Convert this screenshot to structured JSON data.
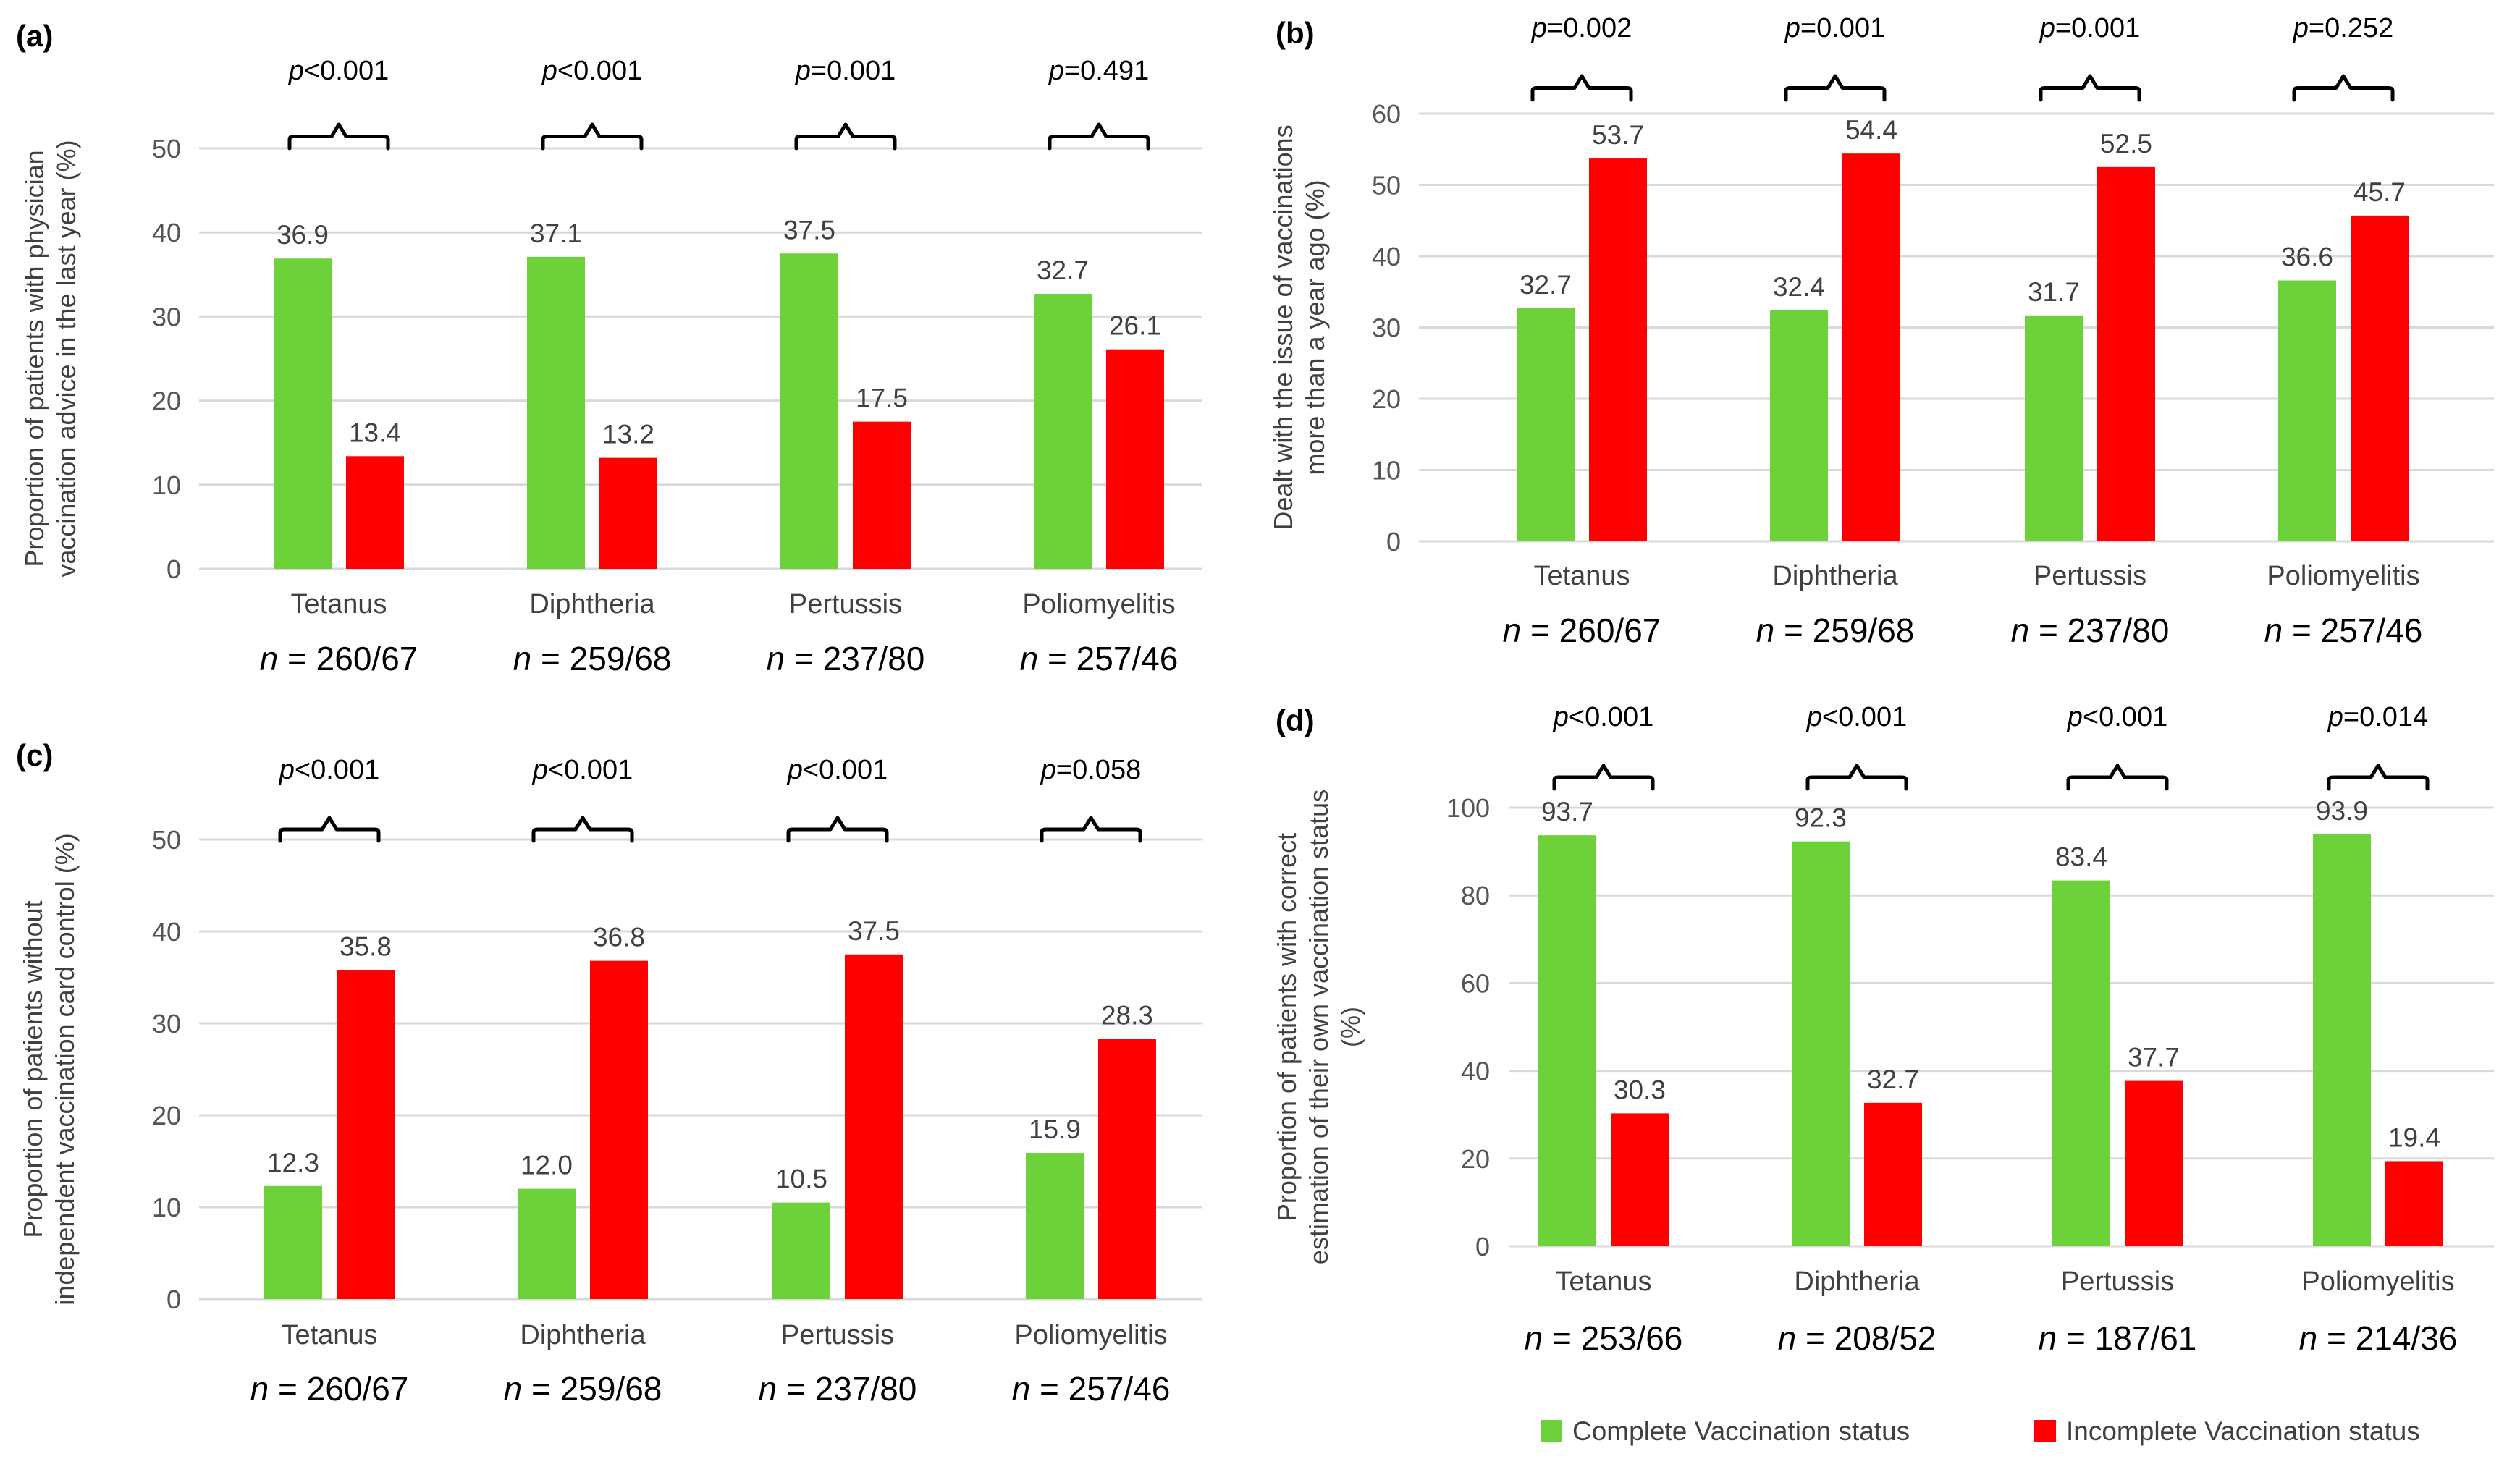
{
  "chart_data": [
    {
      "type": "bar",
      "panel_label": "(a)",
      "ylabel_lines": [
        "Proportion of patients with physician",
        "vaccination advice in the last year (%)"
      ],
      "ylim": [
        0,
        50
      ],
      "yticks": [
        "0",
        "10",
        "20",
        "30",
        "40",
        "50"
      ],
      "grid": true,
      "categories": [
        "Tetanus",
        "Diphtheria",
        "Pertussis",
        "Poliomyelitis"
      ],
      "series": [
        {
          "name": "Complete Vaccination status",
          "color": "#6dd13a",
          "values": [
            36.9,
            37.1,
            37.5,
            32.7
          ],
          "labels": [
            "36.9",
            "37.1",
            "37.5",
            "32.7"
          ]
        },
        {
          "name": "Incomplete Vaccination status",
          "color": "#ff0000",
          "values": [
            13.4,
            13.2,
            17.5,
            26.1
          ],
          "labels": [
            "13.4",
            "13.2",
            "17.5",
            "26.1"
          ]
        }
      ],
      "p_values": [
        {
          "prefix": "p",
          "rest": "<0.001"
        },
        {
          "prefix": "p",
          "rest": "<0.001"
        },
        {
          "prefix": "p",
          "rest": "=0.001"
        },
        {
          "prefix": "p",
          "rest": "=0.491"
        }
      ],
      "n_values": [
        {
          "prefix": "n",
          "rest": " = 260/67"
        },
        {
          "prefix": "n",
          "rest": " = 259/68"
        },
        {
          "prefix": "n",
          "rest": " = 237/80"
        },
        {
          "prefix": "n",
          "rest": " = 257/46"
        }
      ]
    },
    {
      "type": "bar",
      "panel_label": "(b)",
      "ylabel_lines": [
        "Dealt with the issue of vaccinations",
        "more than a year ago (%)"
      ],
      "ylim": [
        0,
        60
      ],
      "yticks": [
        "0",
        "10",
        "20",
        "30",
        "40",
        "50",
        "60"
      ],
      "grid": true,
      "categories": [
        "Tetanus",
        "Diphtheria",
        "Pertussis",
        "Poliomyelitis"
      ],
      "series": [
        {
          "name": "Complete Vaccination status",
          "color": "#6dd13a",
          "values": [
            32.7,
            32.4,
            31.7,
            36.6
          ],
          "labels": [
            "32.7",
            "32.4",
            "31.7",
            "36.6"
          ]
        },
        {
          "name": "Incomplete Vaccination status",
          "color": "#ff0000",
          "values": [
            53.7,
            54.4,
            52.5,
            45.7
          ],
          "labels": [
            "53.7",
            "54.4",
            "52.5",
            "45.7"
          ]
        }
      ],
      "p_values": [
        {
          "prefix": "p",
          "rest": "=0.002"
        },
        {
          "prefix": "p",
          "rest": "=0.001"
        },
        {
          "prefix": "p",
          "rest": "=0.001"
        },
        {
          "prefix": "p",
          "rest": "=0.252"
        }
      ],
      "n_values": [
        {
          "prefix": "n",
          "rest": " = 260/67"
        },
        {
          "prefix": "n",
          "rest": " = 259/68"
        },
        {
          "prefix": "n",
          "rest": " = 237/80"
        },
        {
          "prefix": "n",
          "rest": " = 257/46"
        }
      ]
    },
    {
      "type": "bar",
      "panel_label": "(c)",
      "ylabel_lines": [
        "Proportion of patients without",
        "independent vaccination card control (%)"
      ],
      "ylim": [
        0,
        50
      ],
      "yticks": [
        "0",
        "10",
        "20",
        "30",
        "40",
        "50"
      ],
      "grid": true,
      "categories": [
        "Tetanus",
        "Diphtheria",
        "Pertussis",
        "Poliomyelitis"
      ],
      "series": [
        {
          "name": "Complete Vaccination status",
          "color": "#6dd13a",
          "values": [
            12.3,
            12.0,
            10.5,
            15.9
          ],
          "labels": [
            "12.3",
            "12.0",
            "10.5",
            "15.9"
          ]
        },
        {
          "name": "Incomplete Vaccination status",
          "color": "#ff0000",
          "values": [
            35.8,
            36.8,
            37.5,
            28.3
          ],
          "labels": [
            "35.8",
            "36.8",
            "37.5",
            "28.3"
          ]
        }
      ],
      "p_values": [
        {
          "prefix": "p",
          "rest": "<0.001"
        },
        {
          "prefix": "p",
          "rest": "<0.001"
        },
        {
          "prefix": "p",
          "rest": "<0.001"
        },
        {
          "prefix": "p",
          "rest": "=0.058"
        }
      ],
      "n_values": [
        {
          "prefix": "n",
          "rest": " = 260/67"
        },
        {
          "prefix": "n",
          "rest": " = 259/68"
        },
        {
          "prefix": "n",
          "rest": " = 237/80"
        },
        {
          "prefix": "n",
          "rest": " = 257/46"
        }
      ]
    },
    {
      "type": "bar",
      "panel_label": "(d)",
      "ylabel_lines": [
        "Proportion of patients with correct",
        "estimation of their own vaccination status",
        "(%)"
      ],
      "ylim": [
        0,
        100
      ],
      "yticks": [
        "0",
        "20",
        "40",
        "60",
        "80",
        "100"
      ],
      "grid": true,
      "categories": [
        "Tetanus",
        "Diphtheria",
        "Pertussis",
        "Poliomyelitis"
      ],
      "series": [
        {
          "name": "Complete Vaccination status",
          "color": "#6dd13a",
          "values": [
            93.7,
            92.3,
            83.4,
            93.9
          ],
          "labels": [
            "93.7",
            "92.3",
            "83.4",
            "93.9"
          ]
        },
        {
          "name": "Incomplete Vaccination status",
          "color": "#ff0000",
          "values": [
            30.3,
            32.7,
            37.7,
            19.4
          ],
          "labels": [
            "30.3",
            "32.7",
            "37.7",
            "19.4"
          ]
        }
      ],
      "p_values": [
        {
          "prefix": "p",
          "rest": "<0.001"
        },
        {
          "prefix": "p",
          "rest": "<0.001"
        },
        {
          "prefix": "p",
          "rest": "<0.001"
        },
        {
          "prefix": "p",
          "rest": "=0.014"
        }
      ],
      "n_values": [
        {
          "prefix": "n",
          "rest": " = 253/66"
        },
        {
          "prefix": "n",
          "rest": " = 208/52"
        },
        {
          "prefix": "n",
          "rest": " = 187/61"
        },
        {
          "prefix": "n",
          "rest": " = 214/36"
        }
      ]
    }
  ],
  "legend": {
    "placement": "bottom-right",
    "items": [
      {
        "label": "Complete Vaccination status",
        "color": "#6dd13a"
      },
      {
        "label": "Incomplete Vaccination status",
        "color": "#ff0000"
      }
    ]
  }
}
